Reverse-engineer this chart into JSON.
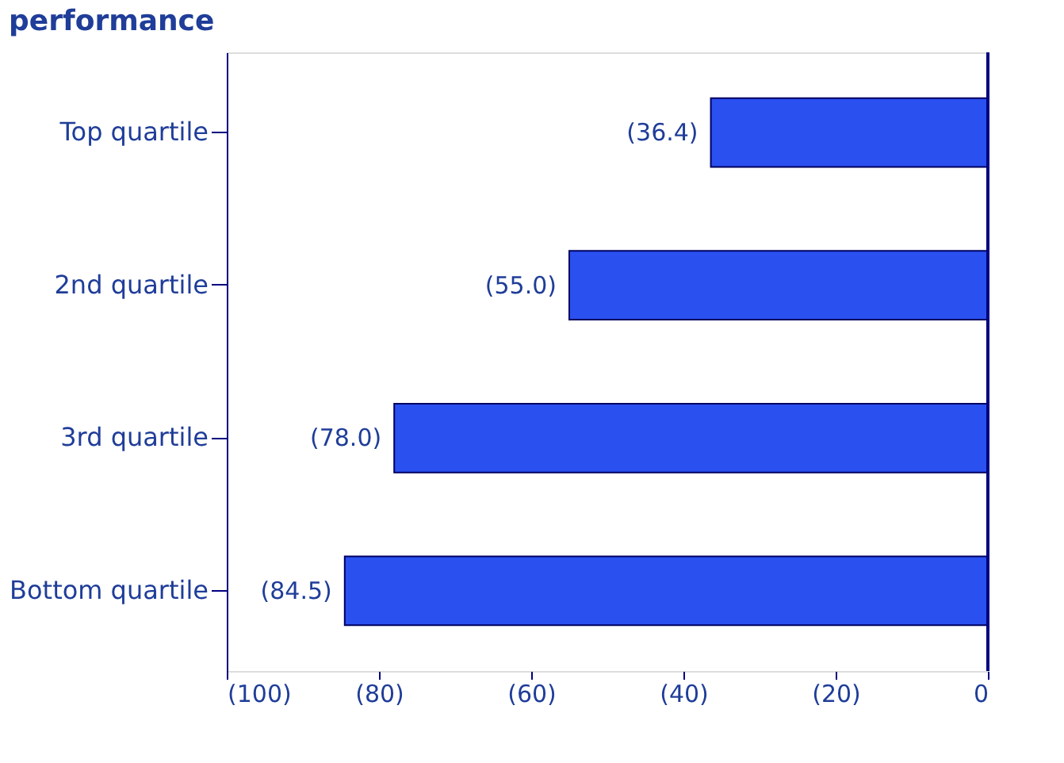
{
  "chart_data": {
    "type": "bar",
    "orientation": "horizontal",
    "title": "performance",
    "categories": [
      "Top quartile",
      "2nd quartile",
      "3rd quartile",
      "Bottom quartile"
    ],
    "values": [
      -36.4,
      -55.0,
      -78.0,
      -84.5
    ],
    "color": "#2a50f0",
    "value_labels": [
      "(36.4)",
      "(55.0)",
      "(78.0)",
      "(84.5)"
    ],
    "xlim": [
      -100,
      0
    ],
    "xticks": [
      {
        "value": -100,
        "label": "(100)"
      },
      {
        "value": -80,
        "label": "(80)"
      },
      {
        "value": -60,
        "label": "(60)"
      },
      {
        "value": -40,
        "label": "(40)"
      },
      {
        "value": -20,
        "label": "(20)"
      },
      0
    ],
    "grid": false
  }
}
